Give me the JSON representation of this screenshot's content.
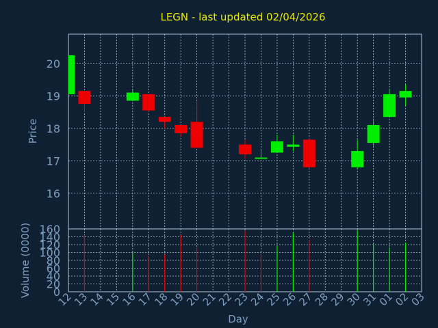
{
  "title": "LEGN - last updated 02/04/2026",
  "colors": {
    "background": "#0f2033",
    "title": "#e8e800",
    "axis_text": "#7f9fbf",
    "grid": "#b0c4d8",
    "up": "#00ee00",
    "down": "#ee0000"
  },
  "chart_data": [
    {
      "type": "candlestick",
      "title": "LEGN - last updated 02/04/2026",
      "ylabel": "Price",
      "xlabel": "",
      "ylim": [
        14.9,
        20.9
      ],
      "yticks": [
        16,
        17,
        18,
        19,
        20
      ],
      "grid": true,
      "candles": [
        {
          "day": "12",
          "open": 19.05,
          "high": 20.25,
          "low": 19.05,
          "close": 20.25
        },
        {
          "day": "13",
          "open": 19.15,
          "high": 19.15,
          "low": 18.5,
          "close": 18.75
        },
        {
          "day": "16",
          "open": 18.85,
          "high": 19.2,
          "low": 18.85,
          "close": 19.1
        },
        {
          "day": "17",
          "open": 19.05,
          "high": 19.05,
          "low": 18.5,
          "close": 18.55
        },
        {
          "day": "18",
          "open": 18.35,
          "high": 18.35,
          "low": 18.0,
          "close": 18.2
        },
        {
          "day": "19",
          "open": 18.1,
          "high": 18.1,
          "low": 17.75,
          "close": 17.85
        },
        {
          "day": "20",
          "open": 18.2,
          "high": 18.85,
          "low": 17.4,
          "close": 17.4
        },
        {
          "day": "23",
          "open": 17.5,
          "high": 17.65,
          "low": 17.05,
          "close": 17.2
        },
        {
          "day": "24",
          "open": 17.1,
          "high": 17.35,
          "low": 17.05,
          "close": 17.1
        },
        {
          "day": "25",
          "open": 17.25,
          "high": 17.8,
          "low": 17.25,
          "close": 17.6
        },
        {
          "day": "26",
          "open": 17.43,
          "high": 17.8,
          "low": 17.3,
          "close": 17.5
        },
        {
          "day": "27",
          "open": 17.65,
          "high": 17.7,
          "low": 16.75,
          "close": 16.8
        },
        {
          "day": "30",
          "open": 16.8,
          "high": 17.65,
          "low": 16.75,
          "close": 17.3
        },
        {
          "day": "31",
          "open": 17.55,
          "high": 18.3,
          "low": 17.45,
          "close": 18.1
        },
        {
          "day": "01",
          "open": 18.35,
          "high": 19.2,
          "low": 18.35,
          "close": 19.05
        },
        {
          "day": "02",
          "open": 18.95,
          "high": 19.35,
          "low": 18.7,
          "close": 19.15
        }
      ]
    },
    {
      "type": "bar",
      "ylabel": "Volume (0000)",
      "xlabel": "Day",
      "ylim": [
        0,
        160
      ],
      "yticks": [
        0,
        20,
        40,
        60,
        80,
        100,
        120,
        140,
        160
      ],
      "grid": true,
      "bars": [
        {
          "day": "13",
          "value": 145,
          "direction": "down"
        },
        {
          "day": "16",
          "value": 100,
          "direction": "up"
        },
        {
          "day": "17",
          "value": 92,
          "direction": "down"
        },
        {
          "day": "18",
          "value": 95,
          "direction": "down"
        },
        {
          "day": "19",
          "value": 145,
          "direction": "down"
        },
        {
          "day": "20",
          "value": 113,
          "direction": "down"
        },
        {
          "day": "23",
          "value": 155,
          "direction": "down"
        },
        {
          "day": "24",
          "value": 97,
          "direction": "down"
        },
        {
          "day": "25",
          "value": 117,
          "direction": "up"
        },
        {
          "day": "26",
          "value": 150,
          "direction": "up"
        },
        {
          "day": "27",
          "value": 133,
          "direction": "down"
        },
        {
          "day": "30",
          "value": 156,
          "direction": "up"
        },
        {
          "day": "31",
          "value": 125,
          "direction": "up"
        },
        {
          "day": "01",
          "value": 113,
          "direction": "up"
        },
        {
          "day": "02",
          "value": 125,
          "direction": "up"
        }
      ],
      "x_tick_labels": [
        "12",
        "13",
        "14",
        "15",
        "16",
        "17",
        "18",
        "19",
        "20",
        "21",
        "22",
        "23",
        "24",
        "25",
        "26",
        "27",
        "28",
        "29",
        "30",
        "31",
        "01",
        "02",
        "03"
      ]
    }
  ]
}
